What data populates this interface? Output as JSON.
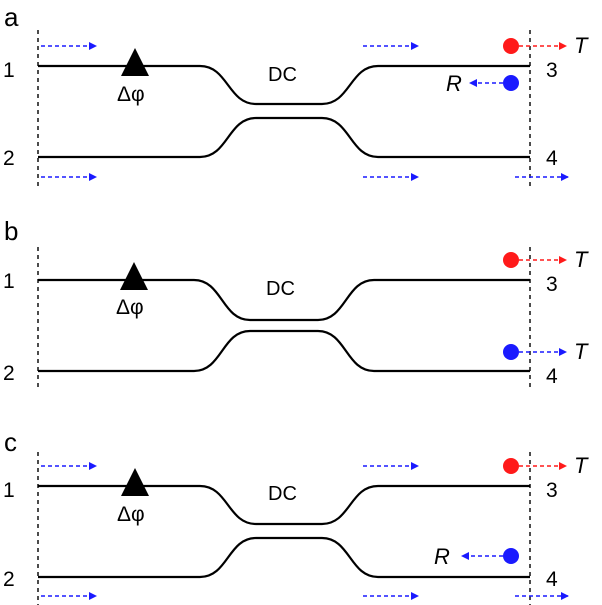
{
  "colors": {
    "red_dot": "#ff1a1a",
    "blue_dot": "#1a1aff",
    "blue_arrow": "#1a1aff",
    "red_arrow": "#ff1a1a",
    "waveguide": "#000000"
  },
  "panels": [
    {
      "letter": "a",
      "port_labels": [
        "1",
        "2",
        "3",
        "4"
      ],
      "coupler_label": "DC",
      "phase_label": "Δφ",
      "outputs": [
        "T",
        "R"
      ]
    },
    {
      "letter": "b",
      "port_labels": [
        "1",
        "2",
        "3",
        "4"
      ],
      "coupler_label": "DC",
      "phase_label": "Δφ",
      "outputs": [
        "T",
        "T"
      ]
    },
    {
      "letter": "c",
      "port_labels": [
        "1",
        "2",
        "3",
        "4"
      ],
      "coupler_label": "DC",
      "phase_label": "Δφ",
      "outputs": [
        "T",
        "R"
      ]
    }
  ]
}
